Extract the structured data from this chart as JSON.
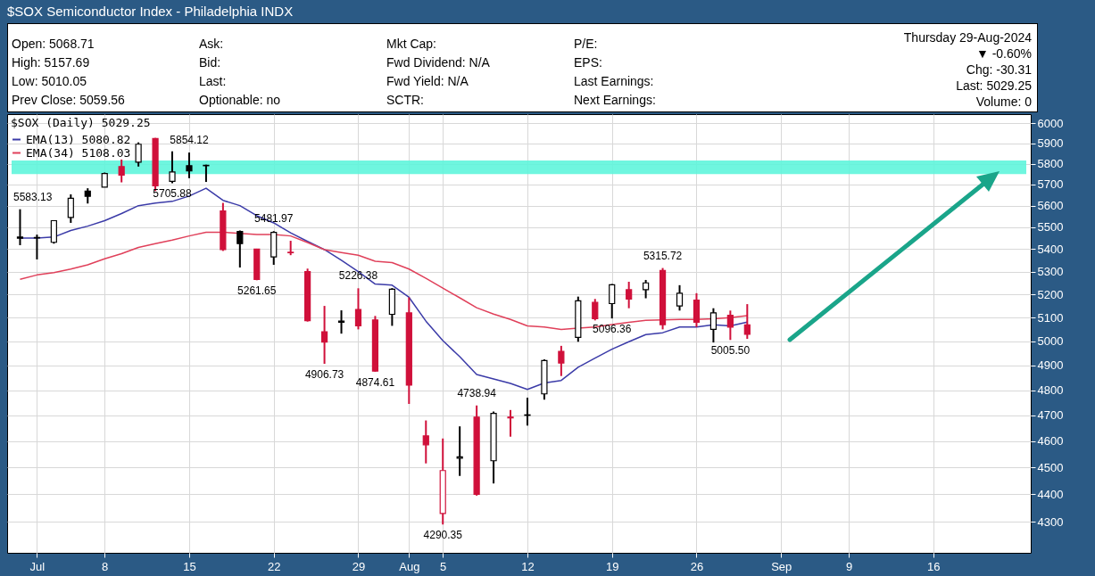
{
  "chart_data": {
    "type": "candlestick",
    "title": "$SOX Semiconductor Index - Philadelphia INDX",
    "annotations": [
      "Open: 5068.71",
      "High: 5157.69",
      "Low: 5010.05",
      "Prev Close: 5059.56",
      "Ask:",
      "Bid:",
      "Last:",
      "Optionable: no",
      "Mkt Cap:",
      "Fwd Dividend: N/A",
      "Fwd Yield: N/A",
      "SCTR:",
      "P/E:",
      "EPS:",
      "Last Earnings:",
      "Next Earnings:",
      "Thursday 29-Aug-2024",
      "▼ -0.60%",
      "Chg: -30.31",
      "Last: 5029.25",
      "Volume: 0"
    ],
    "categories": [
      null,
      "Jul",
      null,
      null,
      null,
      "8",
      null,
      null,
      null,
      null,
      "15",
      null,
      null,
      null,
      null,
      "22",
      null,
      null,
      null,
      null,
      "29",
      null,
      null,
      "Aug",
      null,
      "5",
      null,
      null,
      null,
      null,
      "12",
      null,
      null,
      null,
      null,
      "19",
      null,
      null,
      null,
      null,
      "26",
      null,
      null,
      null,
      null,
      "Sep",
      null,
      null,
      null,
      "9",
      null,
      null,
      null,
      null,
      "16",
      null,
      null,
      null,
      null,
      null
    ],
    "ohlc": [
      [
        5455,
        5583.13,
        5418,
        5450
      ],
      [
        5451,
        5466,
        5354,
        5453
      ],
      [
        5431,
        5532,
        5425,
        5530
      ],
      [
        5545,
        5653,
        5520,
        5635
      ],
      [
        5668,
        5682,
        5610,
        5644
      ],
      [
        5687,
        5757,
        5687,
        5752
      ],
      [
        5786,
        5820,
        5710,
        5745
      ],
      [
        5807,
        5904,
        5786,
        5895
      ],
      [
        5923,
        5926,
        5669,
        5694
      ],
      [
        5715,
        5860,
        5705.88,
        5760
      ],
      [
        5790,
        5854.12,
        5730,
        5765
      ],
      [
        5790,
        5795,
        5712,
        5792
      ],
      [
        5575,
        5613,
        5392,
        5398
      ],
      [
        5480,
        5485,
        5318,
        5425
      ],
      [
        5400,
        5402,
        5261.65,
        5265
      ],
      [
        5365,
        5481.97,
        5330,
        5476
      ],
      [
        5386,
        5438,
        5373,
        5384
      ],
      [
        5300,
        5313,
        5083,
        5087
      ],
      [
        5040,
        5150,
        4906.73,
        4997
      ],
      [
        5080,
        5131,
        5032,
        5085
      ],
      [
        5135,
        5226.38,
        5050,
        5065
      ],
      [
        5090,
        5107,
        4874.61,
        4877
      ],
      [
        5114,
        5227,
        5065,
        5222
      ],
      [
        5120,
        5187,
        4745,
        4820
      ],
      [
        4620,
        4680,
        4515,
        4586
      ],
      [
        4330,
        4610,
        4290.35,
        4488
      ],
      [
        4535,
        4657,
        4468,
        4540
      ],
      [
        4693,
        4738.94,
        4395,
        4400
      ],
      [
        4525,
        4715,
        4440,
        4708
      ],
      [
        4693,
        4721,
        4617,
        4690
      ],
      [
        4700,
        4770,
        4660,
        4702
      ],
      [
        4785,
        4925,
        4762,
        4920
      ],
      [
        4958,
        4981,
        4857,
        4910
      ],
      [
        5016,
        5190.17,
        4998,
        5172
      ],
      [
        5165,
        5180,
        5088,
        5095
      ],
      [
        5160,
        5245,
        5096.36,
        5242
      ],
      [
        5220,
        5255,
        5140,
        5180
      ],
      [
        5220,
        5263,
        5183,
        5250
      ],
      [
        5305,
        5315.72,
        5050,
        5070
      ],
      [
        5150,
        5240,
        5130,
        5205
      ],
      [
        5175,
        5205,
        5060,
        5080
      ],
      [
        5050,
        5140,
        4995,
        5120
      ],
      [
        5110,
        5130,
        5005.5,
        5059.56
      ],
      [
        5068.71,
        5157.69,
        5010.05,
        5029.25
      ],
      null,
      null,
      null,
      null,
      null,
      null,
      null,
      null,
      null,
      null,
      null,
      null,
      null,
      null,
      null,
      null
    ],
    "colors": [
      "#000000",
      "#000000",
      "#000000",
      "#000000",
      "#000000",
      "#000000",
      "#d0103a",
      "#000000",
      "#d0103a",
      "#000000",
      "#000000",
      "#000000",
      "#d0103a",
      "#000000",
      "#d0103a",
      "#000000",
      "#d0103a",
      "#d0103a",
      "#d0103a",
      "#000000",
      "#d0103a",
      "#d0103a",
      "#000000",
      "#d0103a",
      "#d0103a",
      "#d0103a",
      "#000000",
      "#d0103a",
      "#000000",
      "#d0103a",
      "#000000",
      "#000000",
      "#d0103a",
      "#000000",
      "#d0103a",
      "#000000",
      "#d0103a",
      "#000000",
      "#d0103a",
      "#000000",
      "#d0103a",
      "#000000",
      "#d0103a",
      "#d0103a",
      null,
      null,
      null,
      null,
      null,
      null,
      null,
      null,
      null,
      null,
      null,
      null,
      null,
      null,
      null,
      null
    ],
    "value_labels": [
      "5583.13",
      null,
      null,
      null,
      null,
      null,
      null,
      null,
      null,
      "5705.88",
      "5854.12",
      null,
      null,
      null,
      "5261.65",
      "5481.97",
      null,
      null,
      "4906.73",
      null,
      "5226.38",
      "4874.61",
      null,
      null,
      null,
      "4290.35",
      null,
      "4738.94",
      null,
      null,
      null,
      null,
      null,
      null,
      null,
      "5096.36",
      null,
      null,
      "5315.72",
      null,
      null,
      null,
      "5005.50",
      null,
      null,
      null,
      null,
      null,
      null,
      null,
      null,
      null,
      null,
      null,
      null,
      null,
      null,
      null,
      null,
      null
    ],
    "legend_title": "$SOX (Daily) 5029.25",
    "series": [
      {
        "name": "EMA(13) 5080.82",
        "type": "line",
        "color": "#3b3ba8",
        "values": [
          5450,
          5450,
          5455,
          5485,
          5505,
          5530,
          5563,
          5600,
          5612,
          5620,
          5645,
          5682,
          5625,
          5600,
          5553,
          5520,
          5474,
          5435,
          5398,
          5350,
          5300,
          5245,
          5240,
          5187,
          5085,
          5003,
          4936,
          4863,
          4845,
          4827,
          4803,
          4829,
          4839,
          4893,
          4930,
          4967,
          4998,
          5028,
          5036,
          5060,
          5060,
          5069,
          5065,
          5080.82,
          null,
          null,
          null,
          null,
          null,
          null,
          null,
          null,
          null,
          null,
          null,
          null,
          null,
          null,
          null,
          null
        ]
      },
      {
        "name": "EMA(34) 5108.03",
        "type": "line",
        "color": "#e0405a",
        "values": [
          5266,
          5285,
          5295,
          5311,
          5330,
          5357,
          5380,
          5408,
          5425,
          5441,
          5460,
          5477,
          5477,
          5472,
          5467,
          5467,
          5460,
          5430,
          5398,
          5385,
          5373,
          5346,
          5340,
          5311,
          5270,
          5227,
          5185,
          5142,
          5115,
          5092,
          5065,
          5060,
          5050,
          5055,
          5060,
          5070,
          5080,
          5088,
          5090,
          5092,
          5092,
          5095,
          5100,
          5108.03,
          null,
          null,
          null,
          null,
          null,
          null,
          null,
          null,
          null,
          null,
          null,
          null,
          null,
          null,
          null,
          null
        ]
      }
    ],
    "bands": [
      {
        "axis": "y",
        "from": 5750,
        "to": 5815,
        "color": "#5ff5dc"
      }
    ],
    "ylim": [
      4190,
      6045
    ],
    "yticks": [
      4300,
      4400,
      4500,
      4600,
      4700,
      4800,
      4900,
      5000,
      5100,
      5200,
      5300,
      5400,
      5500,
      5600,
      5700,
      5800,
      5900,
      6000
    ],
    "log": true,
    "grid": true,
    "legend": "top left"
  }
}
